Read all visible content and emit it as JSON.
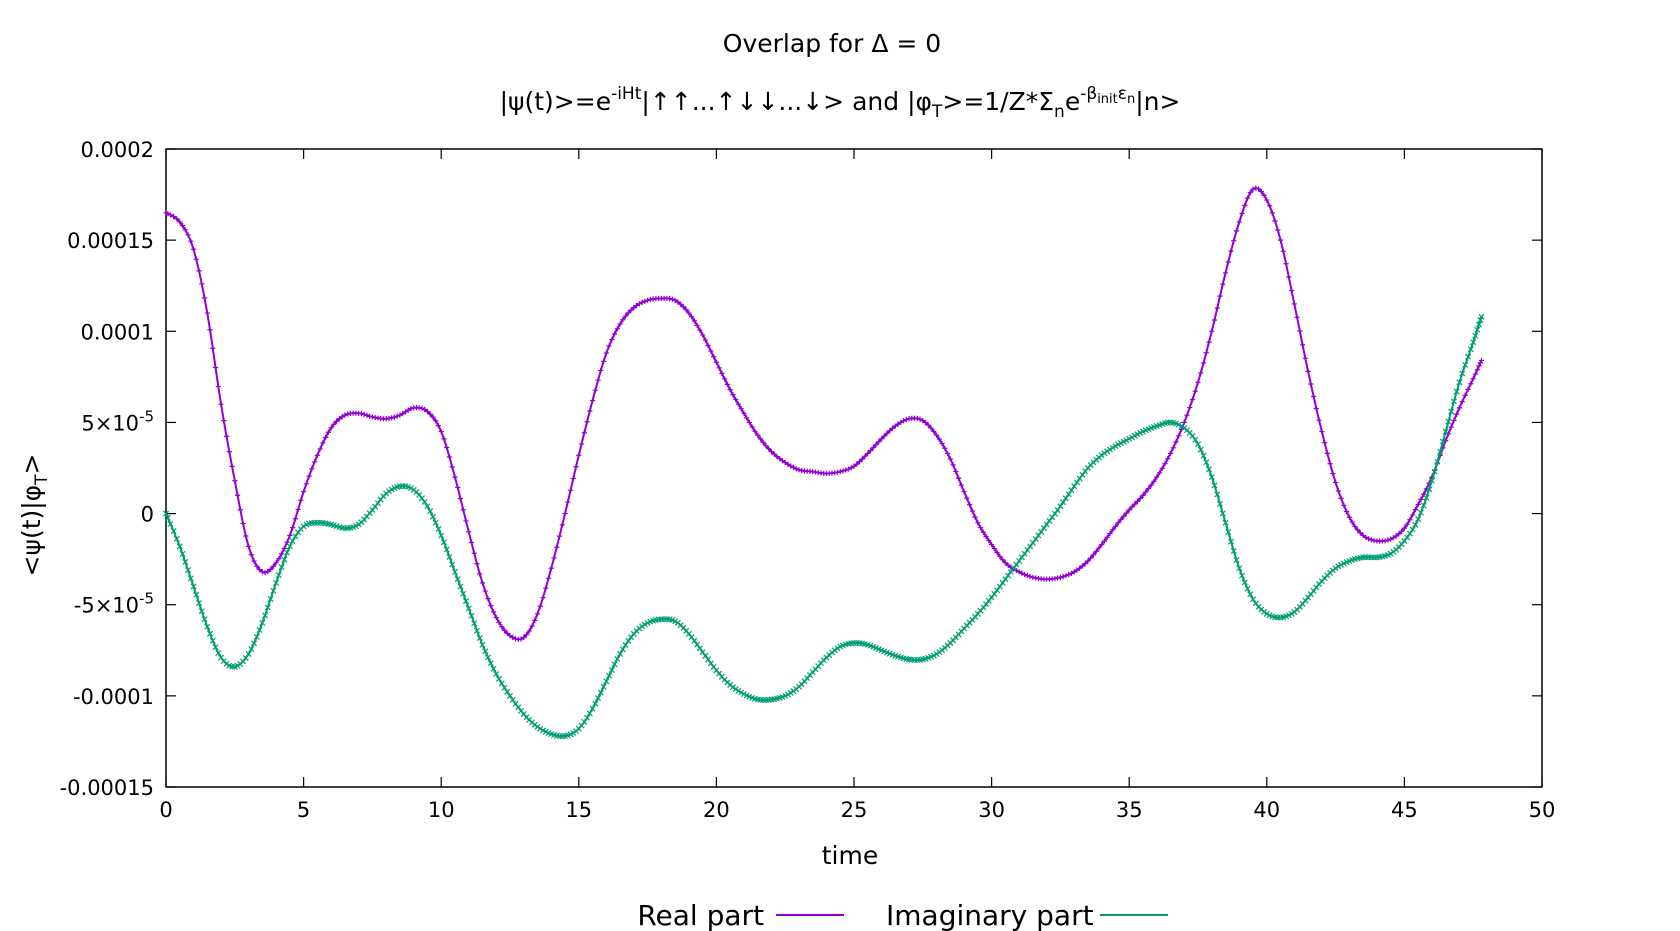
{
  "chart_data": {
    "type": "line",
    "title": "Overlap for Δ = 0",
    "subtitle": {
      "psi_lhs": "|ψ(t)>=e",
      "psi_exp": "-iHt",
      "psi_rhs": "|↑↑...↑↓↓...↓>",
      "and": " and ",
      "phi_lhs": "|φ",
      "phi_sub": "T",
      "phi_mid": ">=1/Z*Σ",
      "sum_sub": "n",
      "e": "e",
      "beta_exp": "-β",
      "beta_sub": "init",
      "eps": "ε",
      "eps_sub": "n",
      "ket_n": "|n>"
    },
    "xlabel": "time",
    "ylabel": {
      "pre": "<ψ(t)|φ",
      "sub": "T",
      "post": ">"
    },
    "xlim": [
      0,
      50
    ],
    "ylim": [
      -0.00015,
      0.0002
    ],
    "x_ticks": [
      "0",
      "5",
      "10",
      "15",
      "20",
      "25",
      "30",
      "35",
      "40",
      "45",
      "50"
    ],
    "y_ticks": [
      {
        "value": 0.0002,
        "label": "0.0002"
      },
      {
        "value": 0.00015,
        "label": "0.00015"
      },
      {
        "value": 0.0001,
        "label": "0.0001"
      },
      {
        "value": 5e-05,
        "label": "5×10",
        "exp": "-5"
      },
      {
        "value": 0,
        "label": "0"
      },
      {
        "value": -5e-05,
        "label": "-5×10",
        "exp": "-5"
      },
      {
        "value": -0.0001,
        "label": "-0.0001"
      },
      {
        "value": -0.00015,
        "label": "-0.00015"
      }
    ],
    "grid": false,
    "legend_position": "bottom-center",
    "series": [
      {
        "name": "Real part",
        "color": "#9400d3",
        "marker": "plus",
        "points": [
          [
            0,
            0.000165
          ],
          [
            0.5,
            0.00016
          ],
          [
            1,
            0.000145
          ],
          [
            1.5,
            0.00011
          ],
          [
            2,
            6e-05
          ],
          [
            2.5,
            1.8e-05
          ],
          [
            3,
            -1.8e-05
          ],
          [
            3.5,
            -3.2e-05
          ],
          [
            4,
            -2.7e-05
          ],
          [
            4.5,
            -1.2e-05
          ],
          [
            5,
            1.2e-05
          ],
          [
            5.5,
            3.2e-05
          ],
          [
            6,
            4.7e-05
          ],
          [
            6.5,
            5.4e-05
          ],
          [
            7,
            5.5e-05
          ],
          [
            7.5,
            5.3e-05
          ],
          [
            8,
            5.2e-05
          ],
          [
            8.5,
            5.4e-05
          ],
          [
            9,
            5.8e-05
          ],
          [
            9.5,
            5.6e-05
          ],
          [
            10,
            4.5e-05
          ],
          [
            10.5,
            2e-05
          ],
          [
            11,
            -1e-05
          ],
          [
            11.5,
            -3.8e-05
          ],
          [
            12,
            -5.7e-05
          ],
          [
            12.5,
            -6.7e-05
          ],
          [
            13,
            -6.8e-05
          ],
          [
            13.5,
            -5.5e-05
          ],
          [
            14,
            -3e-05
          ],
          [
            14.5,
            0.0
          ],
          [
            15,
            3.2e-05
          ],
          [
            15.5,
            6.2e-05
          ],
          [
            16,
            8.8e-05
          ],
          [
            16.5,
            0.000104
          ],
          [
            17,
            0.000113
          ],
          [
            17.5,
            0.000117
          ],
          [
            18,
            0.000118
          ],
          [
            18.5,
            0.000117
          ],
          [
            19,
            0.00011
          ],
          [
            19.5,
            9.8e-05
          ],
          [
            20,
            8.3e-05
          ],
          [
            20.5,
            6.8e-05
          ],
          [
            21,
            5.5e-05
          ],
          [
            21.5,
            4.3e-05
          ],
          [
            22,
            3.4e-05
          ],
          [
            22.5,
            2.8e-05
          ],
          [
            23,
            2.4e-05
          ],
          [
            23.5,
            2.3e-05
          ],
          [
            24,
            2.2e-05
          ],
          [
            24.5,
            2.3e-05
          ],
          [
            25,
            2.6e-05
          ],
          [
            25.5,
            3.3e-05
          ],
          [
            26,
            4.1e-05
          ],
          [
            26.5,
            4.8e-05
          ],
          [
            27,
            5.2e-05
          ],
          [
            27.5,
            5.1e-05
          ],
          [
            28,
            4.3e-05
          ],
          [
            28.5,
            3e-05
          ],
          [
            29,
            1.2e-05
          ],
          [
            29.5,
            -5e-06
          ],
          [
            30,
            -1.7e-05
          ],
          [
            30.5,
            -2.7e-05
          ],
          [
            31,
            -3.2e-05
          ],
          [
            31.5,
            -3.5e-05
          ],
          [
            32,
            -3.6e-05
          ],
          [
            32.5,
            -3.5e-05
          ],
          [
            33,
            -3.2e-05
          ],
          [
            33.5,
            -2.6e-05
          ],
          [
            34,
            -1.7e-05
          ],
          [
            34.5,
            -7e-06
          ],
          [
            35,
            2e-06
          ],
          [
            35.5,
            1e-05
          ],
          [
            36,
            2e-05
          ],
          [
            36.5,
            3.3e-05
          ],
          [
            37,
            5e-05
          ],
          [
            37.5,
            7.2e-05
          ],
          [
            38,
            0.0001
          ],
          [
            38.5,
            0.000132
          ],
          [
            39,
            0.00016
          ],
          [
            39.5,
            0.000178
          ],
          [
            40,
            0.000172
          ],
          [
            40.5,
            0.00015
          ],
          [
            41,
            0.000115
          ],
          [
            41.5,
            7.8e-05
          ],
          [
            42,
            4.5e-05
          ],
          [
            42.5,
            1.7e-05
          ],
          [
            43,
            -2e-06
          ],
          [
            43.5,
            -1.2e-05
          ],
          [
            44,
            -1.5e-05
          ],
          [
            44.5,
            -1.4e-05
          ],
          [
            45,
            -8e-06
          ],
          [
            45.5,
            5e-06
          ],
          [
            46,
            2e-05
          ],
          [
            46.5,
            4e-05
          ],
          [
            47,
            5.8e-05
          ],
          [
            47.5,
            7.4e-05
          ],
          [
            47.8,
            8.4e-05
          ]
        ]
      },
      {
        "name": "Imaginary part",
        "color": "#009e73",
        "marker": "cross",
        "points": [
          [
            0,
            0.0
          ],
          [
            0.5,
            -1.8e-05
          ],
          [
            1,
            -4e-05
          ],
          [
            1.5,
            -6.2e-05
          ],
          [
            2,
            -7.9e-05
          ],
          [
            2.5,
            -8.4e-05
          ],
          [
            3,
            -7.7e-05
          ],
          [
            3.5,
            -6e-05
          ],
          [
            4,
            -3.8e-05
          ],
          [
            4.5,
            -1.8e-05
          ],
          [
            5,
            -7e-06
          ],
          [
            5.5,
            -5e-06
          ],
          [
            6,
            -6e-06
          ],
          [
            6.5,
            -8e-06
          ],
          [
            7,
            -6e-06
          ],
          [
            7.5,
            2e-06
          ],
          [
            8,
            1.1e-05
          ],
          [
            8.5,
            1.5e-05
          ],
          [
            9,
            1.3e-05
          ],
          [
            9.5,
            4e-06
          ],
          [
            10,
            -1.2e-05
          ],
          [
            10.5,
            -3.2e-05
          ],
          [
            11,
            -5.2e-05
          ],
          [
            11.5,
            -7.2e-05
          ],
          [
            12,
            -8.8e-05
          ],
          [
            12.5,
            -0.0001
          ],
          [
            13,
            -0.00011
          ],
          [
            13.5,
            -0.000117
          ],
          [
            14,
            -0.000121
          ],
          [
            14.5,
            -0.000122
          ],
          [
            15,
            -0.000118
          ],
          [
            15.5,
            -0.000107
          ],
          [
            16,
            -9.2e-05
          ],
          [
            16.5,
            -7.7e-05
          ],
          [
            17,
            -6.6e-05
          ],
          [
            17.5,
            -6e-05
          ],
          [
            18,
            -5.8e-05
          ],
          [
            18.5,
            -5.9e-05
          ],
          [
            19,
            -6.6e-05
          ],
          [
            19.5,
            -7.6e-05
          ],
          [
            20,
            -8.6e-05
          ],
          [
            20.5,
            -9.4e-05
          ],
          [
            21,
            -9.9e-05
          ],
          [
            21.5,
            -0.000102
          ],
          [
            22,
            -0.000102
          ],
          [
            22.5,
            -0.0001
          ],
          [
            23,
            -9.5e-05
          ],
          [
            23.5,
            -8.7e-05
          ],
          [
            24,
            -7.9e-05
          ],
          [
            24.5,
            -7.3e-05
          ],
          [
            25,
            -7.1e-05
          ],
          [
            25.5,
            -7.2e-05
          ],
          [
            26,
            -7.5e-05
          ],
          [
            26.5,
            -7.8e-05
          ],
          [
            27,
            -8e-05
          ],
          [
            27.5,
            -8e-05
          ],
          [
            28,
            -7.7e-05
          ],
          [
            28.5,
            -7.1e-05
          ],
          [
            29,
            -6.3e-05
          ],
          [
            29.5,
            -5.5e-05
          ],
          [
            30,
            -4.6e-05
          ],
          [
            30.5,
            -3.6e-05
          ],
          [
            31,
            -2.6e-05
          ],
          [
            31.5,
            -1.6e-05
          ],
          [
            32,
            -6e-06
          ],
          [
            32.5,
            4e-06
          ],
          [
            33,
            1.5e-05
          ],
          [
            33.5,
            2.5e-05
          ],
          [
            34,
            3.2e-05
          ],
          [
            34.5,
            3.7e-05
          ],
          [
            35,
            4.1e-05
          ],
          [
            35.5,
            4.5e-05
          ],
          [
            36,
            4.8e-05
          ],
          [
            36.5,
            5e-05
          ],
          [
            37,
            4.7e-05
          ],
          [
            37.5,
            3.8e-05
          ],
          [
            38,
            2e-05
          ],
          [
            38.5,
            -5e-06
          ],
          [
            39,
            -3e-05
          ],
          [
            39.5,
            -4.7e-05
          ],
          [
            40,
            -5.5e-05
          ],
          [
            40.5,
            -5.7e-05
          ],
          [
            41,
            -5.4e-05
          ],
          [
            41.5,
            -4.6e-05
          ],
          [
            42,
            -3.7e-05
          ],
          [
            42.5,
            -3e-05
          ],
          [
            43,
            -2.6e-05
          ],
          [
            43.5,
            -2.4e-05
          ],
          [
            44,
            -2.4e-05
          ],
          [
            44.5,
            -2.2e-05
          ],
          [
            45,
            -1.5e-05
          ],
          [
            45.5,
            -3e-06
          ],
          [
            46,
            1.8e-05
          ],
          [
            46.5,
            4.5e-05
          ],
          [
            47,
            7.2e-05
          ],
          [
            47.5,
            9.4e-05
          ],
          [
            47.8,
            0.000108
          ]
        ]
      }
    ]
  }
}
